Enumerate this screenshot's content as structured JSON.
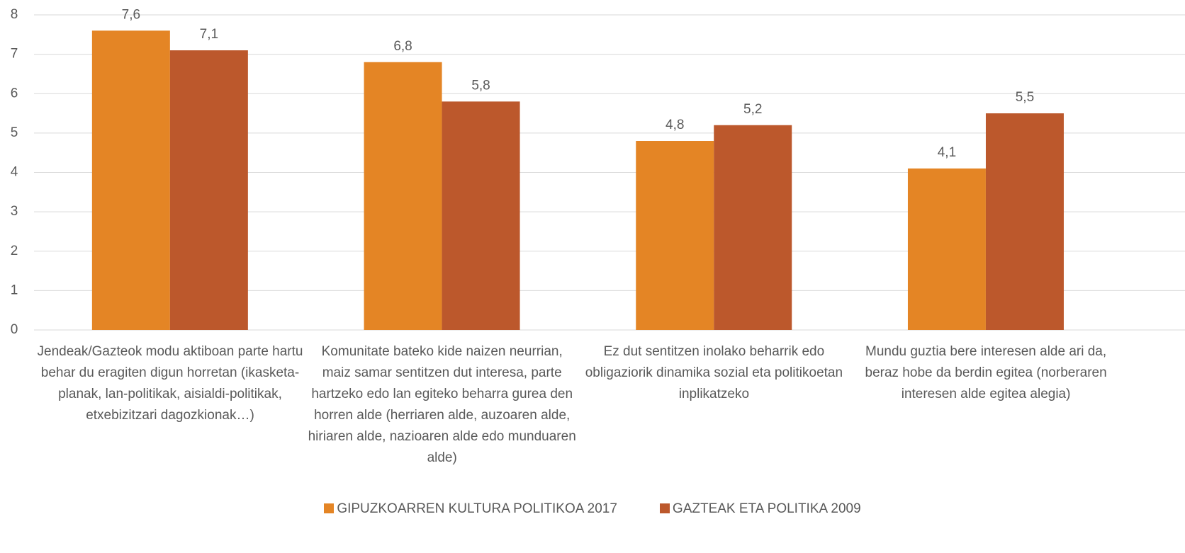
{
  "chart_data": {
    "type": "bar",
    "categories": [
      "Jendeak/Gazteok modu aktiboan parte hartu behar du eragiten digun horretan (ikasketa-planak, lan-politikak, aisialdi-politikak, etxebizitzari dagozkionak…)",
      "Komunitate bateko kide naizen neurrian, maiz samar sentitzen dut interesa, parte hartzeko edo lan egiteko beharra gurea den horren alde (herriaren alde, auzoaren alde, hiriaren alde, nazioaren alde edo munduaren alde)",
      "Ez dut sentitzen inolako beharrik edo obligaziorik dinamika sozial eta politikoetan inplikatzeko",
      "Mundu guztia bere interesen alde ari da, beraz hobe da berdin egitea (norberaren interesen alde egitea alegia)"
    ],
    "series": [
      {
        "name": "GIPUZKOARREN KULTURA POLITIKOA 2017",
        "color": "#e48525",
        "values": [
          7.6,
          6.8,
          4.8,
          4.1
        ],
        "value_labels": [
          "7,6",
          "6,8",
          "4,8",
          "4,1"
        ]
      },
      {
        "name": "GAZTEAK ETA POLITIKA 2009",
        "color": "#bc582c",
        "values": [
          7.1,
          5.8,
          5.2,
          5.5
        ],
        "value_labels": [
          "7,1",
          "5,8",
          "5,2",
          "5,5"
        ]
      }
    ],
    "ylim": [
      0,
      8
    ],
    "yticks": [
      0,
      1,
      2,
      3,
      4,
      5,
      6,
      7,
      8
    ],
    "grid": true,
    "legend": "bottom"
  }
}
